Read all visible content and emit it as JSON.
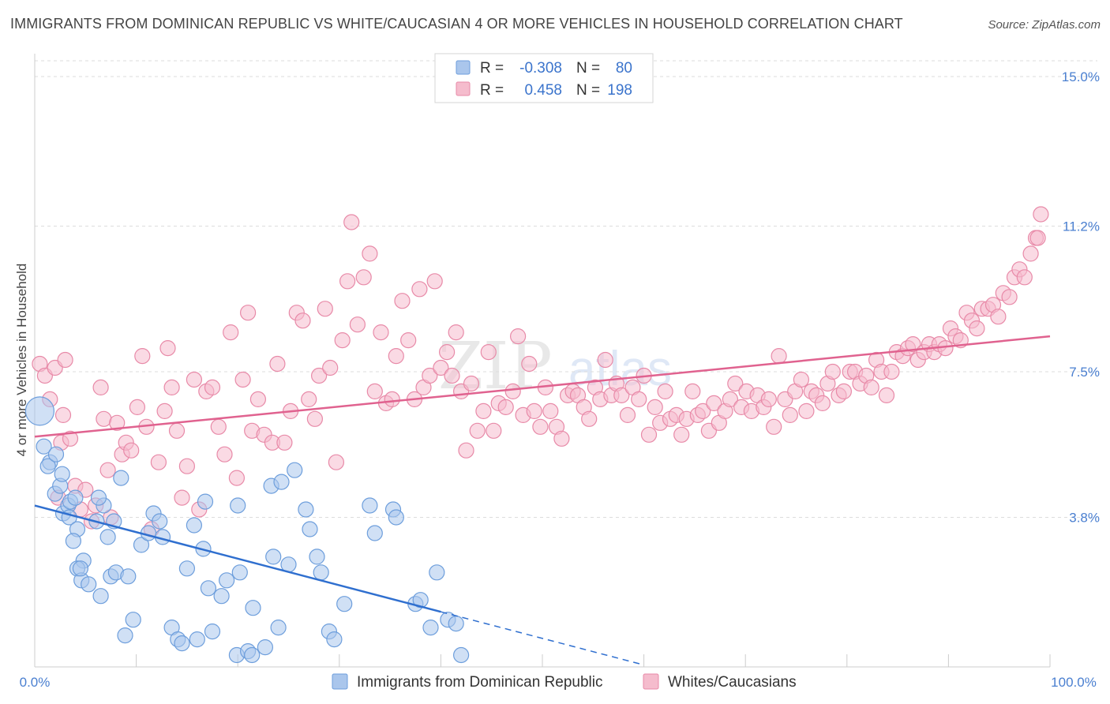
{
  "header": {
    "title": "IMMIGRANTS FROM DOMINICAN REPUBLIC VS WHITE/CAUCASIAN 4 OR MORE VEHICLES IN HOUSEHOLD CORRELATION CHART",
    "source": "Source: ZipAtlas.com"
  },
  "watermark": {
    "zip": "ZIP",
    "atlas": "atlas"
  },
  "legend": {
    "rows": [
      {
        "r_label": "R =",
        "r_value": "-0.308",
        "n_label": "N =",
        "n_value": "80"
      },
      {
        "r_label": "R =",
        "r_value": "0.458",
        "n_label": "N =",
        "n_value": "198"
      }
    ]
  },
  "colors": {
    "blue_fill": "#aac6ec",
    "blue_stroke": "#6d9edc",
    "blue_line": "#2f6fcf",
    "pink_fill": "#f5bccd",
    "pink_stroke": "#e88aa8",
    "pink_line": "#e0628f",
    "tick_text": "#4a7fd0",
    "grid": "#dddddd"
  },
  "chart_data": {
    "type": "scatter",
    "title": "IMMIGRANTS FROM DOMINICAN REPUBLIC VS WHITE/CAUCASIAN 4 OR MORE VEHICLES IN HOUSEHOLD CORRELATION CHART",
    "ylabel": "4 or more Vehicles in Household",
    "x_tick_labels": [
      "0.0%",
      "100.0%"
    ],
    "y_tick_labels": [
      "3.8%",
      "7.5%",
      "11.2%",
      "15.0%"
    ],
    "y_ticks": [
      3.8,
      7.5,
      11.2,
      15.0
    ],
    "xlim": [
      0,
      100
    ],
    "ylim": [
      0,
      15.0
    ],
    "grid": true,
    "legend_position": "top-center",
    "series": [
      {
        "name": "Immigrants from Dominican Republic",
        "color": "#aac6ec",
        "r": -0.308,
        "n": 80,
        "trend": {
          "x0": 0,
          "y0": 4.1,
          "x1": 40,
          "y1": 1.4,
          "dash_to_x": 60,
          "dash_to_y": 0.05
        },
        "points": [
          [
            0.5,
            6.5
          ],
          [
            0.9,
            5.6
          ],
          [
            1.5,
            5.2
          ],
          [
            1.3,
            5.1
          ],
          [
            2.1,
            5.4
          ],
          [
            2.0,
            4.4
          ],
          [
            2.5,
            4.6
          ],
          [
            2.7,
            4.9
          ],
          [
            2.8,
            3.9
          ],
          [
            3.3,
            4.1
          ],
          [
            3.5,
            4.2
          ],
          [
            4.0,
            4.3
          ],
          [
            3.4,
            3.8
          ],
          [
            4.2,
            3.5
          ],
          [
            3.8,
            3.2
          ],
          [
            4.8,
            2.7
          ],
          [
            4.2,
            2.5
          ],
          [
            4.6,
            2.2
          ],
          [
            4.5,
            2.5
          ],
          [
            5.3,
            2.1
          ],
          [
            6.8,
            4.1
          ],
          [
            6.3,
            4.3
          ],
          [
            6.1,
            3.7
          ],
          [
            7.2,
            3.3
          ],
          [
            7.5,
            2.3
          ],
          [
            6.5,
            1.8
          ],
          [
            8.0,
            2.4
          ],
          [
            7.8,
            3.7
          ],
          [
            8.5,
            4.8
          ],
          [
            9.2,
            2.3
          ],
          [
            8.9,
            0.8
          ],
          [
            9.7,
            1.2
          ],
          [
            10.5,
            3.1
          ],
          [
            11.2,
            3.4
          ],
          [
            11.7,
            3.9
          ],
          [
            12.3,
            3.7
          ],
          [
            12.6,
            3.3
          ],
          [
            13.5,
            1.0
          ],
          [
            14.1,
            0.7
          ],
          [
            14.5,
            0.6
          ],
          [
            15.0,
            2.5
          ],
          [
            15.7,
            3.6
          ],
          [
            16.0,
            0.7
          ],
          [
            16.6,
            3.0
          ],
          [
            16.8,
            4.2
          ],
          [
            17.1,
            2.0
          ],
          [
            17.5,
            0.9
          ],
          [
            18.4,
            1.8
          ],
          [
            18.9,
            2.2
          ],
          [
            19.9,
            0.3
          ],
          [
            20.0,
            4.1
          ],
          [
            20.2,
            2.4
          ],
          [
            21.5,
            1.5
          ],
          [
            21.0,
            0.4
          ],
          [
            21.4,
            0.3
          ],
          [
            22.7,
            0.5
          ],
          [
            23.5,
            2.8
          ],
          [
            23.3,
            4.6
          ],
          [
            24.0,
            1.0
          ],
          [
            24.3,
            4.7
          ],
          [
            25.0,
            2.6
          ],
          [
            25.6,
            5.0
          ],
          [
            26.7,
            4.0
          ],
          [
            27.1,
            3.5
          ],
          [
            27.8,
            2.8
          ],
          [
            28.2,
            2.4
          ],
          [
            29.0,
            0.9
          ],
          [
            29.5,
            0.7
          ],
          [
            30.5,
            1.6
          ],
          [
            33.0,
            4.1
          ],
          [
            33.5,
            3.4
          ],
          [
            35.3,
            4.0
          ],
          [
            35.6,
            3.8
          ],
          [
            37.5,
            1.6
          ],
          [
            38.0,
            1.7
          ],
          [
            39.0,
            1.0
          ],
          [
            39.6,
            2.4
          ],
          [
            40.7,
            1.2
          ],
          [
            41.5,
            1.1
          ],
          [
            42.0,
            0.3
          ]
        ]
      },
      {
        "name": "Whites/Caucasians",
        "color": "#f5bccd",
        "r": 0.458,
        "n": 198,
        "trend": {
          "x0": 0,
          "y0": 5.85,
          "x1": 100,
          "y1": 8.4
        },
        "points": [
          [
            0.5,
            7.7
          ],
          [
            1.0,
            7.4
          ],
          [
            1.5,
            6.8
          ],
          [
            2.0,
            7.6
          ],
          [
            2.3,
            4.3
          ],
          [
            2.6,
            5.7
          ],
          [
            2.8,
            6.4
          ],
          [
            3.0,
            7.8
          ],
          [
            3.5,
            5.8
          ],
          [
            4.0,
            4.6
          ],
          [
            4.5,
            4.0
          ],
          [
            5.0,
            4.5
          ],
          [
            5.6,
            3.7
          ],
          [
            6.0,
            4.1
          ],
          [
            6.5,
            7.1
          ],
          [
            6.8,
            6.3
          ],
          [
            7.2,
            5.0
          ],
          [
            7.5,
            3.8
          ],
          [
            8.1,
            6.2
          ],
          [
            8.6,
            5.4
          ],
          [
            9.0,
            5.7
          ],
          [
            9.5,
            5.5
          ],
          [
            10.1,
            6.6
          ],
          [
            10.6,
            7.9
          ],
          [
            11.0,
            6.1
          ],
          [
            11.5,
            3.5
          ],
          [
            12.2,
            5.2
          ],
          [
            12.8,
            6.5
          ],
          [
            13.1,
            8.1
          ],
          [
            13.5,
            7.1
          ],
          [
            14.0,
            6.0
          ],
          [
            14.5,
            4.3
          ],
          [
            15.0,
            5.1
          ],
          [
            15.7,
            7.3
          ],
          [
            16.2,
            4.0
          ],
          [
            16.9,
            7.0
          ],
          [
            17.5,
            7.1
          ],
          [
            18.1,
            6.1
          ],
          [
            18.7,
            5.4
          ],
          [
            19.3,
            8.5
          ],
          [
            19.9,
            4.8
          ],
          [
            20.5,
            7.3
          ],
          [
            21.0,
            9.0
          ],
          [
            21.4,
            6.0
          ],
          [
            22.0,
            6.8
          ],
          [
            22.6,
            5.9
          ],
          [
            23.4,
            5.7
          ],
          [
            23.9,
            7.7
          ],
          [
            24.6,
            5.7
          ],
          [
            25.2,
            6.5
          ],
          [
            25.8,
            9.0
          ],
          [
            26.4,
            8.8
          ],
          [
            27.0,
            6.8
          ],
          [
            27.6,
            6.3
          ],
          [
            28.0,
            7.4
          ],
          [
            28.6,
            9.1
          ],
          [
            29.1,
            7.6
          ],
          [
            29.7,
            5.2
          ],
          [
            30.3,
            8.3
          ],
          [
            30.8,
            9.8
          ],
          [
            31.2,
            11.3
          ],
          [
            31.8,
            8.7
          ],
          [
            32.4,
            9.9
          ],
          [
            33.0,
            10.5
          ],
          [
            33.5,
            7.0
          ],
          [
            34.1,
            8.5
          ],
          [
            34.6,
            6.7
          ],
          [
            35.2,
            6.8
          ],
          [
            35.6,
            7.9
          ],
          [
            36.2,
            9.3
          ],
          [
            36.8,
            8.3
          ],
          [
            37.4,
            6.8
          ],
          [
            37.9,
            9.6
          ],
          [
            38.3,
            7.1
          ],
          [
            38.9,
            7.4
          ],
          [
            39.4,
            9.8
          ],
          [
            40.0,
            7.6
          ],
          [
            40.6,
            8.0
          ],
          [
            41.1,
            7.4
          ],
          [
            41.5,
            8.5
          ],
          [
            42.0,
            7.0
          ],
          [
            42.5,
            5.5
          ],
          [
            43.0,
            7.2
          ],
          [
            43.6,
            6.0
          ],
          [
            44.2,
            6.5
          ],
          [
            44.7,
            8.0
          ],
          [
            45.2,
            6.0
          ],
          [
            45.7,
            6.7
          ],
          [
            46.4,
            6.6
          ],
          [
            47.1,
            7.0
          ],
          [
            47.6,
            8.4
          ],
          [
            48.1,
            6.4
          ],
          [
            48.7,
            7.7
          ],
          [
            49.2,
            6.5
          ],
          [
            49.8,
            6.1
          ],
          [
            50.3,
            7.1
          ],
          [
            50.8,
            6.5
          ],
          [
            51.4,
            6.1
          ],
          [
            51.9,
            5.8
          ],
          [
            52.5,
            6.9
          ],
          [
            53.0,
            7.0
          ],
          [
            53.5,
            6.9
          ],
          [
            54.1,
            6.6
          ],
          [
            54.6,
            6.3
          ],
          [
            55.2,
            7.1
          ],
          [
            55.7,
            6.8
          ],
          [
            56.2,
            7.8
          ],
          [
            56.8,
            6.9
          ],
          [
            57.3,
            7.2
          ],
          [
            57.8,
            6.9
          ],
          [
            58.4,
            6.4
          ],
          [
            58.9,
            7.1
          ],
          [
            59.5,
            6.8
          ],
          [
            60.0,
            7.4
          ],
          [
            60.5,
            5.9
          ],
          [
            61.1,
            6.6
          ],
          [
            61.6,
            6.2
          ],
          [
            62.1,
            7.0
          ],
          [
            62.6,
            6.3
          ],
          [
            63.2,
            6.4
          ],
          [
            63.7,
            5.9
          ],
          [
            64.2,
            6.3
          ],
          [
            64.8,
            7.0
          ],
          [
            65.3,
            6.4
          ],
          [
            65.8,
            6.5
          ],
          [
            66.4,
            6.0
          ],
          [
            66.9,
            6.7
          ],
          [
            67.4,
            6.2
          ],
          [
            68.0,
            6.5
          ],
          [
            68.5,
            6.8
          ],
          [
            69.0,
            7.2
          ],
          [
            69.6,
            6.6
          ],
          [
            70.1,
            7.0
          ],
          [
            70.6,
            6.5
          ],
          [
            71.2,
            6.9
          ],
          [
            71.8,
            6.6
          ],
          [
            72.3,
            6.8
          ],
          [
            72.8,
            6.1
          ],
          [
            73.3,
            7.9
          ],
          [
            73.9,
            6.8
          ],
          [
            74.4,
            6.4
          ],
          [
            74.9,
            7.0
          ],
          [
            75.5,
            7.3
          ],
          [
            76.0,
            6.5
          ],
          [
            76.5,
            7.0
          ],
          [
            77.0,
            6.9
          ],
          [
            77.6,
            6.7
          ],
          [
            78.1,
            7.2
          ],
          [
            78.6,
            7.5
          ],
          [
            79.2,
            6.9
          ],
          [
            79.7,
            7.0
          ],
          [
            80.3,
            7.5
          ],
          [
            80.8,
            7.5
          ],
          [
            81.3,
            7.2
          ],
          [
            81.9,
            7.4
          ],
          [
            82.4,
            7.1
          ],
          [
            82.9,
            7.8
          ],
          [
            83.4,
            7.5
          ],
          [
            83.9,
            6.9
          ],
          [
            84.4,
            7.5
          ],
          [
            84.9,
            8.0
          ],
          [
            85.5,
            7.9
          ],
          [
            86.0,
            8.1
          ],
          [
            86.5,
            8.2
          ],
          [
            87.0,
            7.8
          ],
          [
            87.6,
            8.0
          ],
          [
            88.1,
            8.2
          ],
          [
            88.6,
            8.0
          ],
          [
            89.1,
            8.2
          ],
          [
            89.7,
            8.1
          ],
          [
            90.2,
            8.6
          ],
          [
            90.7,
            8.4
          ],
          [
            91.2,
            8.3
          ],
          [
            91.8,
            9.0
          ],
          [
            92.3,
            8.8
          ],
          [
            92.8,
            8.6
          ],
          [
            93.3,
            9.1
          ],
          [
            93.9,
            9.1
          ],
          [
            94.4,
            9.2
          ],
          [
            94.9,
            8.9
          ],
          [
            95.4,
            9.5
          ],
          [
            96.0,
            9.4
          ],
          [
            96.5,
            9.9
          ],
          [
            97.0,
            10.1
          ],
          [
            97.5,
            9.9
          ],
          [
            98.1,
            10.5
          ],
          [
            98.6,
            10.9
          ],
          [
            99.1,
            11.5
          ],
          [
            98.8,
            10.9
          ]
        ]
      }
    ]
  },
  "bottom_legend": {
    "items": [
      {
        "label": "Immigrants from Dominican Republic"
      },
      {
        "label": "Whites/Caucasians"
      }
    ]
  }
}
